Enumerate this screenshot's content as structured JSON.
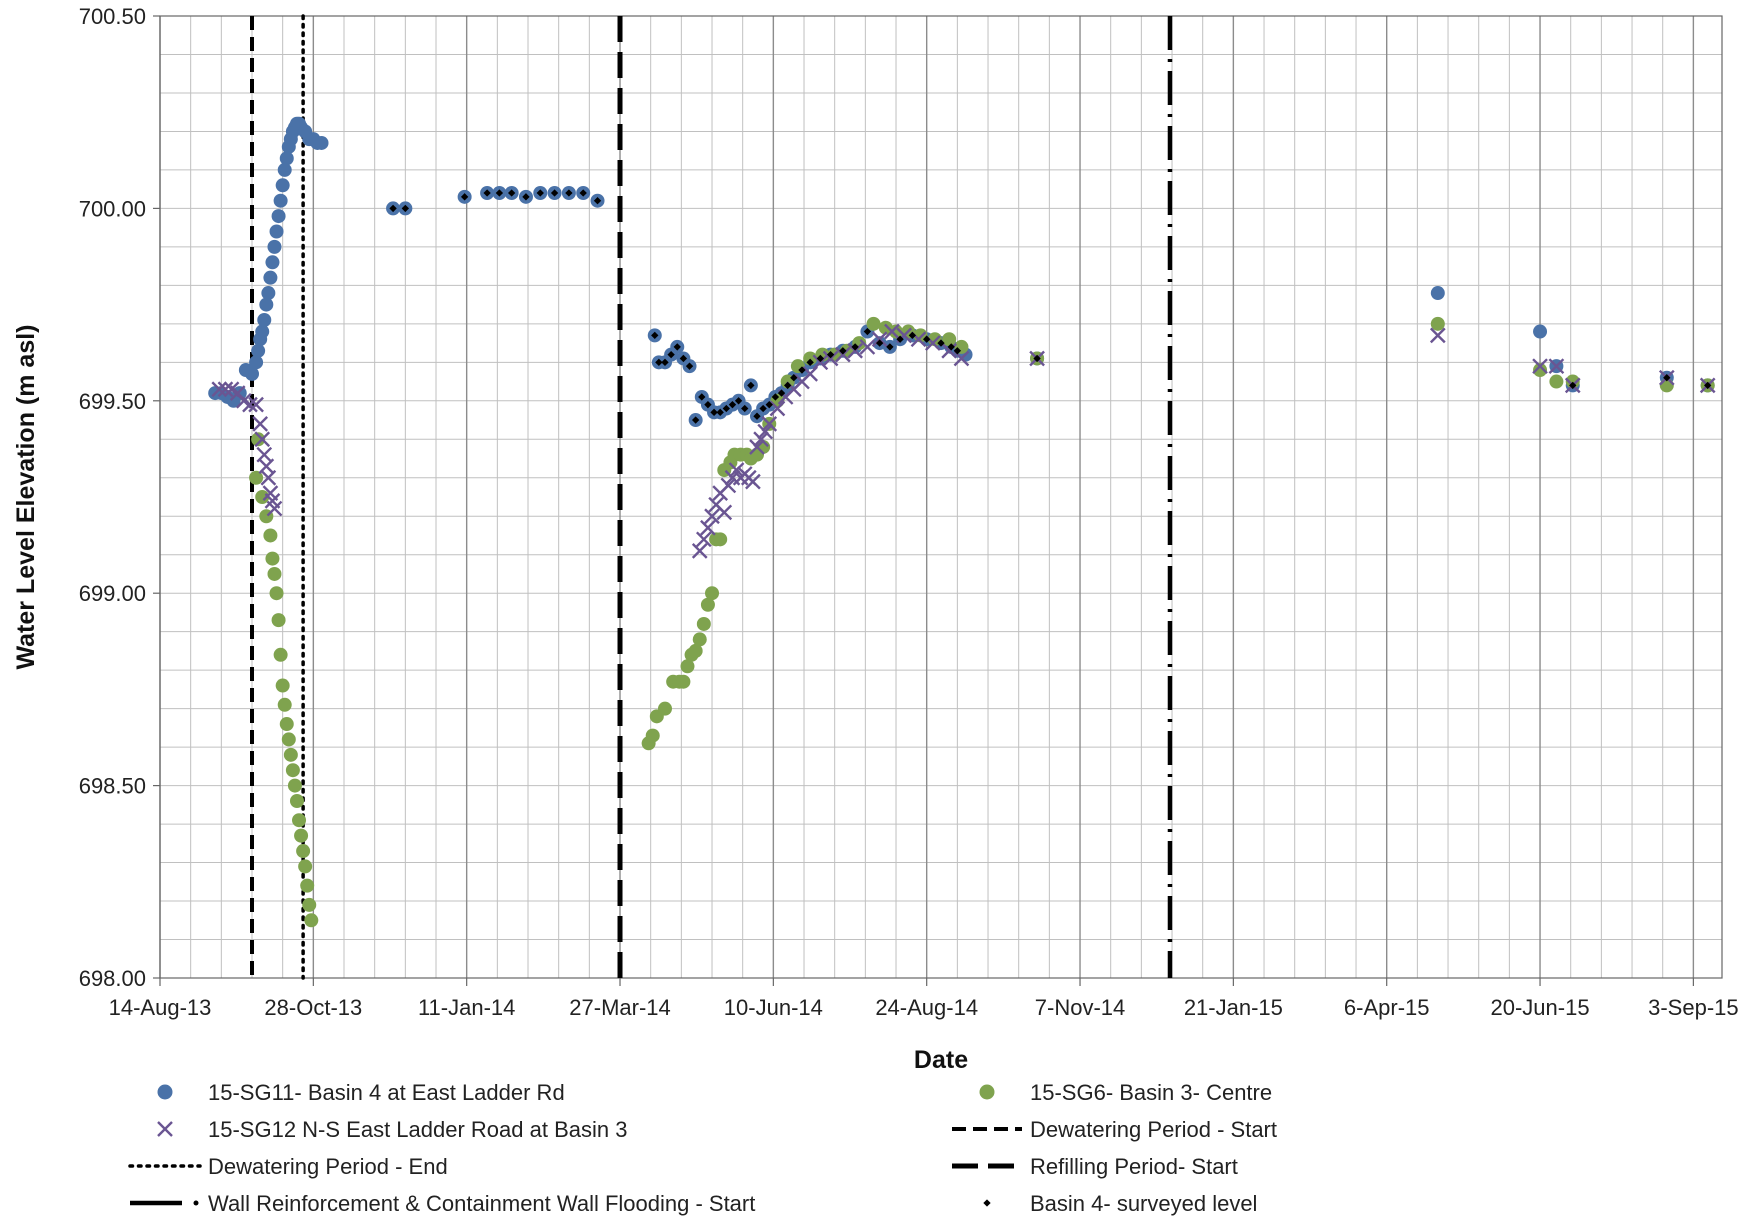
{
  "chart_data": {
    "type": "scatter",
    "xlabel": "Date",
    "ylabel": "Water Level Elevation (m asl)",
    "ylim": [
      698.0,
      700.5
    ],
    "yticks": [
      "698.00",
      "698.50",
      "699.00",
      "699.50",
      "700.00",
      "700.50"
    ],
    "xlim": [
      "2013-08-14",
      "2015-09-17"
    ],
    "xticks": [
      "14-Aug-13",
      "28-Oct-13",
      "11-Jan-14",
      "27-Mar-14",
      "10-Jun-14",
      "24-Aug-14",
      "7-Nov-14",
      "21-Jan-15",
      "6-Apr-15",
      "20-Jun-15",
      "3-Sep-15"
    ],
    "grid": true,
    "legend_position": "bottom",
    "colors": {
      "sg11": "#4a72a8",
      "sg12": "#6a5592",
      "sg6": "#7fa34e",
      "reference": "#000000",
      "grid": "#c0c0c0",
      "grid_major": "#8c8c8c"
    },
    "series": [
      {
        "name": "15-SG11- Basin 4 at East Ladder Rd",
        "key": "sg11",
        "marker": "circle",
        "x": [
          "2013-09-10",
          "2013-09-13",
          "2013-09-16",
          "2013-09-19",
          "2013-09-22",
          "2013-09-25",
          "2013-09-28",
          "2013-09-30",
          "2013-10-01",
          "2013-10-02",
          "2013-10-03",
          "2013-10-04",
          "2013-10-05",
          "2013-10-06",
          "2013-10-07",
          "2013-10-08",
          "2013-10-09",
          "2013-10-10",
          "2013-10-11",
          "2013-10-12",
          "2013-10-13",
          "2013-10-14",
          "2013-10-15",
          "2013-10-16",
          "2013-10-17",
          "2013-10-18",
          "2013-10-19",
          "2013-10-20",
          "2013-10-21",
          "2013-10-22",
          "2013-10-24",
          "2013-10-26",
          "2013-10-28",
          "2013-10-30",
          "2013-11-01",
          "2013-12-06",
          "2013-12-12",
          "2014-01-10",
          "2014-01-21",
          "2014-01-27",
          "2014-02-02",
          "2014-02-09",
          "2014-02-16",
          "2014-02-23",
          "2014-03-02",
          "2014-03-09",
          "2014-03-16",
          "2014-04-13",
          "2014-04-15",
          "2014-04-18",
          "2014-04-21",
          "2014-04-24",
          "2014-04-27",
          "2014-04-30",
          "2014-05-03",
          "2014-05-06",
          "2014-05-09",
          "2014-05-12",
          "2014-05-15",
          "2014-05-18",
          "2014-05-21",
          "2014-05-24",
          "2014-05-27",
          "2014-05-30",
          "2014-06-02",
          "2014-06-05",
          "2014-06-08",
          "2014-06-11",
          "2014-06-14",
          "2014-06-17",
          "2014-06-20",
          "2014-06-24",
          "2014-06-28",
          "2014-07-03",
          "2014-07-08",
          "2014-07-14",
          "2014-07-20",
          "2014-07-26",
          "2014-08-01",
          "2014-08-06",
          "2014-08-11",
          "2014-08-17",
          "2014-08-24",
          "2014-08-31",
          "2014-09-05",
          "2014-09-08",
          "2014-09-12",
          "2014-10-17",
          "2015-05-01",
          "2015-06-20",
          "2015-06-28",
          "2015-07-06",
          "2015-08-21",
          "2015-09-10"
        ],
        "y": [
          699.52,
          699.52,
          699.51,
          699.5,
          699.52,
          699.58,
          699.57,
          699.6,
          699.63,
          699.66,
          699.68,
          699.71,
          699.75,
          699.78,
          699.82,
          699.86,
          699.9,
          699.94,
          699.98,
          700.02,
          700.06,
          700.1,
          700.13,
          700.16,
          700.18,
          700.2,
          700.21,
          700.22,
          700.22,
          700.21,
          700.2,
          700.18,
          700.18,
          700.17,
          700.17,
          700.0,
          700.0,
          700.03,
          700.04,
          700.04,
          700.04,
          700.03,
          700.04,
          700.04,
          700.04,
          700.04,
          700.02,
          699.67,
          699.6,
          699.6,
          699.62,
          699.64,
          699.61,
          699.59,
          699.45,
          699.51,
          699.49,
          699.47,
          699.47,
          699.48,
          699.49,
          699.5,
          699.48,
          699.54,
          699.46,
          699.48,
          699.49,
          699.51,
          699.52,
          699.54,
          699.56,
          699.58,
          699.6,
          699.61,
          699.62,
          699.63,
          699.64,
          699.68,
          699.65,
          699.64,
          699.66,
          699.67,
          699.66,
          699.65,
          699.64,
          699.63,
          699.62,
          699.61,
          699.78,
          699.68,
          699.59,
          699.54,
          699.56,
          699.54
        ]
      },
      {
        "name": "15-SG6- Basin 3- Centre",
        "key": "sg6",
        "marker": "circle",
        "x": [
          "2013-09-30",
          "2013-10-01",
          "2013-10-03",
          "2013-10-05",
          "2013-10-07",
          "2013-10-08",
          "2013-10-09",
          "2013-10-10",
          "2013-10-11",
          "2013-10-12",
          "2013-10-13",
          "2013-10-14",
          "2013-10-15",
          "2013-10-16",
          "2013-10-17",
          "2013-10-18",
          "2013-10-19",
          "2013-10-20",
          "2013-10-21",
          "2013-10-22",
          "2013-10-23",
          "2013-10-24",
          "2013-10-25",
          "2013-10-26",
          "2013-10-27",
          "2014-04-10",
          "2014-04-12",
          "2014-04-14",
          "2014-04-18",
          "2014-04-22",
          "2014-04-25",
          "2014-04-27",
          "2014-04-29",
          "2014-05-01",
          "2014-05-03",
          "2014-05-05",
          "2014-05-07",
          "2014-05-09",
          "2014-05-11",
          "2014-05-13",
          "2014-05-15",
          "2014-05-17",
          "2014-05-20",
          "2014-05-22",
          "2014-05-25",
          "2014-05-28",
          "2014-05-30",
          "2014-06-02",
          "2014-06-05",
          "2014-06-08",
          "2014-06-12",
          "2014-06-17",
          "2014-06-22",
          "2014-06-28",
          "2014-07-04",
          "2014-07-10",
          "2014-07-16",
          "2014-07-22",
          "2014-07-29",
          "2014-08-04",
          "2014-08-09",
          "2014-08-15",
          "2014-08-21",
          "2014-08-28",
          "2014-09-04",
          "2014-09-10",
          "2014-10-17",
          "2015-05-01",
          "2015-06-20",
          "2015-06-28",
          "2015-07-06",
          "2015-08-21",
          "2015-09-10"
        ],
        "y": [
          699.3,
          699.4,
          699.25,
          699.2,
          699.15,
          699.09,
          699.05,
          699.0,
          698.93,
          698.84,
          698.76,
          698.71,
          698.66,
          698.62,
          698.58,
          698.54,
          698.5,
          698.46,
          698.41,
          698.37,
          698.33,
          698.29,
          698.24,
          698.19,
          698.15,
          698.61,
          698.63,
          698.68,
          698.7,
          698.77,
          698.77,
          698.77,
          698.81,
          698.84,
          698.85,
          698.88,
          698.92,
          698.97,
          699.0,
          699.14,
          699.14,
          699.32,
          699.34,
          699.36,
          699.36,
          699.36,
          699.35,
          699.36,
          699.38,
          699.44,
          699.5,
          699.55,
          699.59,
          699.61,
          699.62,
          699.62,
          699.63,
          699.65,
          699.7,
          699.69,
          699.68,
          699.68,
          699.67,
          699.66,
          699.66,
          699.64,
          699.61,
          699.7,
          699.58,
          699.55,
          699.55,
          699.54,
          699.54
        ]
      },
      {
        "name": "15-SG12 N-S East Ladder Road at Basin 3",
        "key": "sg12",
        "marker": "x",
        "x": [
          "2013-09-12",
          "2013-09-15",
          "2013-09-18",
          "2013-09-21",
          "2013-09-24",
          "2013-09-27",
          "2013-09-30",
          "2013-10-02",
          "2013-10-03",
          "2013-10-04",
          "2013-10-05",
          "2013-10-06",
          "2013-10-07",
          "2013-10-08",
          "2013-10-09",
          "2014-05-05",
          "2014-05-07",
          "2014-05-09",
          "2014-05-11",
          "2014-05-13",
          "2014-05-15",
          "2014-05-17",
          "2014-05-19",
          "2014-05-21",
          "2014-05-23",
          "2014-05-25",
          "2014-05-27",
          "2014-05-29",
          "2014-05-31",
          "2014-06-02",
          "2014-06-04",
          "2014-06-06",
          "2014-06-08",
          "2014-06-12",
          "2014-06-16",
          "2014-06-20",
          "2014-06-24",
          "2014-06-28",
          "2014-07-03",
          "2014-07-08",
          "2014-07-14",
          "2014-07-20",
          "2014-07-26",
          "2014-08-01",
          "2014-08-07",
          "2014-08-13",
          "2014-08-20",
          "2014-08-27",
          "2014-09-04",
          "2014-09-10",
          "2014-10-17",
          "2015-05-01",
          "2015-06-20",
          "2015-06-28",
          "2015-07-06",
          "2015-08-21",
          "2015-09-10"
        ],
        "y": [
          699.53,
          699.53,
          699.53,
          699.52,
          699.5,
          699.49,
          699.49,
          699.44,
          699.4,
          699.36,
          699.33,
          699.3,
          699.26,
          699.24,
          699.22,
          699.11,
          699.14,
          699.17,
          699.2,
          699.23,
          699.26,
          699.21,
          699.28,
          699.3,
          699.32,
          699.3,
          699.31,
          699.3,
          699.29,
          699.38,
          699.4,
          699.42,
          699.44,
          699.48,
          699.51,
          699.53,
          699.55,
          699.57,
          699.6,
          699.61,
          699.62,
          699.63,
          699.64,
          699.66,
          699.68,
          699.67,
          699.66,
          699.65,
          699.63,
          699.61,
          699.61,
          699.67,
          699.59,
          699.59,
          699.54,
          699.56,
          699.54
        ]
      },
      {
        "name": "Basin 4- surveyed level",
        "key": "survey",
        "marker": "dot",
        "x": [
          "2013-12-06",
          "2013-12-12",
          "2014-01-10",
          "2014-01-21",
          "2014-01-27",
          "2014-02-02",
          "2014-02-09",
          "2014-02-16",
          "2014-02-23",
          "2014-03-02",
          "2014-03-09",
          "2014-03-16",
          "2014-04-13",
          "2014-04-15",
          "2014-04-18",
          "2014-04-21",
          "2014-04-24",
          "2014-04-27",
          "2014-04-30",
          "2014-05-03",
          "2014-05-06",
          "2014-05-09",
          "2014-05-12",
          "2014-05-15",
          "2014-05-18",
          "2014-05-21",
          "2014-05-24",
          "2014-05-27",
          "2014-05-30",
          "2014-06-02",
          "2014-06-05",
          "2014-06-08",
          "2014-06-11",
          "2014-06-14",
          "2014-06-17",
          "2014-06-20",
          "2014-06-24",
          "2014-06-28",
          "2014-07-03",
          "2014-07-08",
          "2014-07-14",
          "2014-07-20",
          "2014-07-26",
          "2014-08-01",
          "2014-08-06",
          "2014-08-11",
          "2014-08-17",
          "2014-08-24",
          "2014-08-31",
          "2014-09-05",
          "2014-09-08",
          "2014-10-17",
          "2015-07-06",
          "2015-08-21",
          "2015-09-10"
        ],
        "y": [
          700.0,
          700.0,
          700.03,
          700.04,
          700.04,
          700.04,
          700.03,
          700.04,
          700.04,
          700.04,
          700.04,
          700.02,
          699.67,
          699.6,
          699.6,
          699.62,
          699.64,
          699.61,
          699.59,
          699.45,
          699.51,
          699.49,
          699.47,
          699.47,
          699.48,
          699.49,
          699.5,
          699.48,
          699.54,
          699.46,
          699.48,
          699.49,
          699.51,
          699.52,
          699.54,
          699.56,
          699.58,
          699.6,
          699.61,
          699.62,
          699.63,
          699.64,
          699.68,
          699.65,
          699.64,
          699.66,
          699.67,
          699.66,
          699.65,
          699.64,
          699.63,
          699.61,
          699.54,
          699.56,
          699.54
        ]
      }
    ],
    "reference_lines": [
      {
        "name": "Dewatering Period - Start",
        "x": "2013-09-28",
        "style": "dashed"
      },
      {
        "name": "Dewatering Period - End",
        "x": "2013-10-23",
        "style": "dotted"
      },
      {
        "name": "Refilling Period- Start",
        "x": "2014-03-27",
        "style": "longdash"
      },
      {
        "name": "Wall Reinforcement & Containment Wall Flooding - Start",
        "x": "2014-12-21",
        "style": "dashdot"
      }
    ],
    "legend": [
      {
        "label": "15-SG11- Basin 4 at East Ladder Rd",
        "symbol": "circle",
        "key": "sg11"
      },
      {
        "label": "15-SG6- Basin 3- Centre",
        "symbol": "circle",
        "key": "sg6"
      },
      {
        "label": "15-SG12 N-S East Ladder Road at Basin 3",
        "symbol": "x",
        "key": "sg12"
      },
      {
        "label": "Dewatering Period - Start",
        "symbol": "dashed",
        "key": "reference"
      },
      {
        "label": "Dewatering Period - End",
        "symbol": "dotted",
        "key": "reference"
      },
      {
        "label": "Refilling Period- Start",
        "symbol": "longdash",
        "key": "reference"
      },
      {
        "label": "Wall Reinforcement & Containment Wall Flooding - Start",
        "symbol": "dashdot",
        "key": "reference"
      },
      {
        "label": "Basin 4- surveyed level",
        "symbol": "dot",
        "key": "reference"
      }
    ]
  }
}
